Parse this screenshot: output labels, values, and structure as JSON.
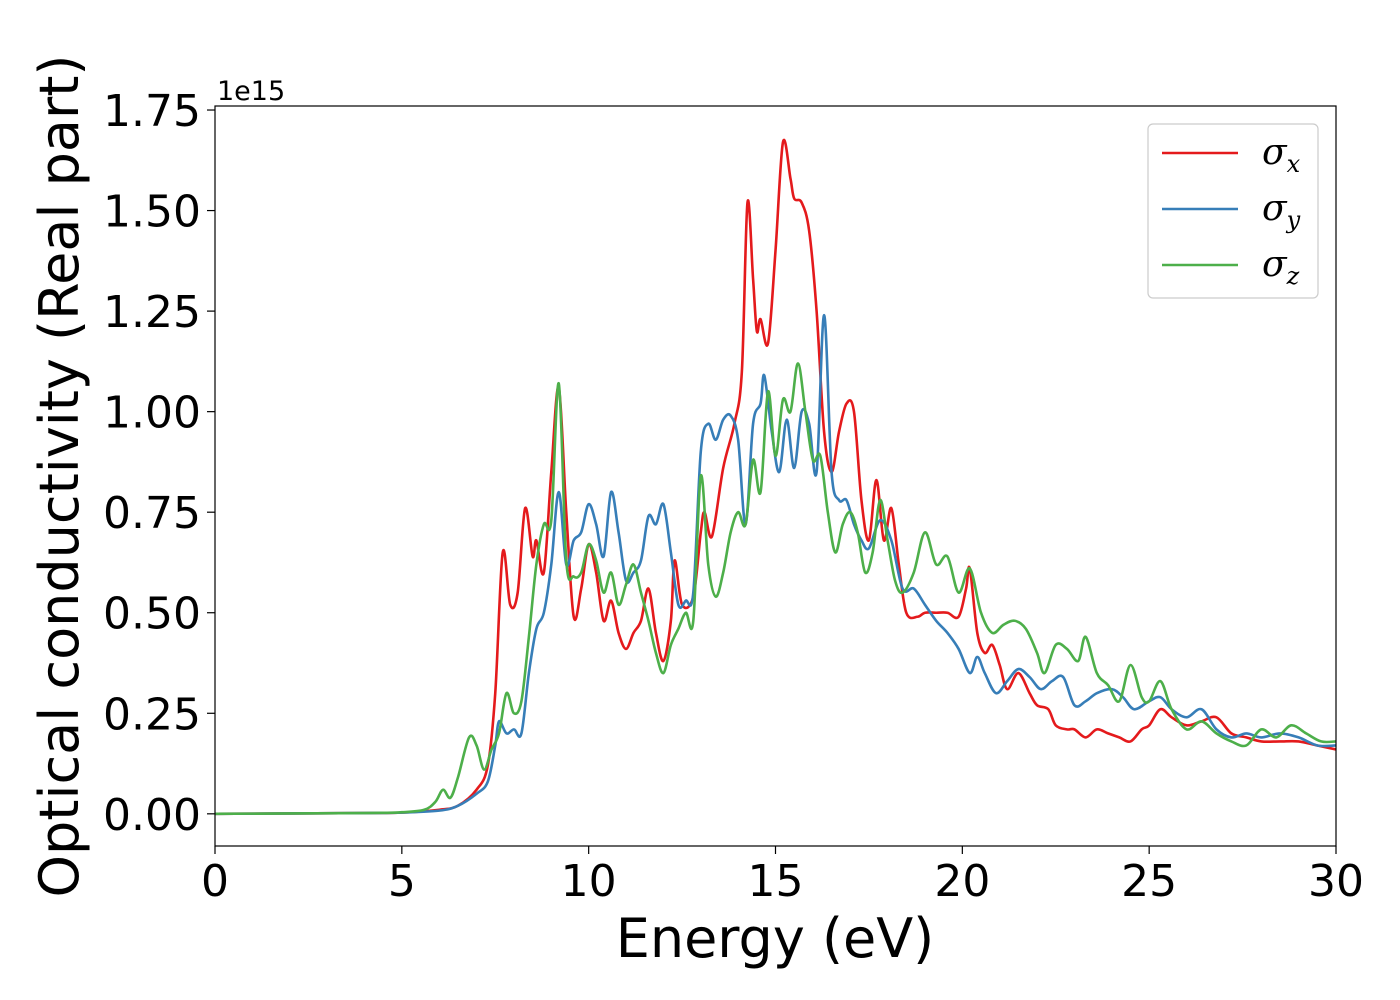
{
  "chart_data": {
    "type": "line",
    "xlabel": "Energy (eV)",
    "ylabel": "Optical conductivity (Real part)",
    "y_offset_label": "1e15",
    "xlim": [
      0,
      30
    ],
    "ylim": [
      -0.08,
      1.76
    ],
    "grid": false,
    "legend_position": "top-right",
    "x_ticks": [
      0,
      5,
      10,
      15,
      20,
      25,
      30
    ],
    "x_tick_labels": [
      "0",
      "5",
      "10",
      "15",
      "20",
      "25",
      "30"
    ],
    "y_ticks": [
      0,
      0.25,
      0.5,
      0.75,
      1.0,
      1.25,
      1.5,
      1.75
    ],
    "y_tick_labels": [
      "0.00",
      "0.25",
      "0.50",
      "0.75",
      "1.00",
      "1.25",
      "1.50",
      "1.75"
    ],
    "series": [
      {
        "name": "σx",
        "symbol": "σ",
        "subscript": "x",
        "color": "#e41a1c",
        "points": [
          [
            0,
            0
          ],
          [
            4,
            0.002
          ],
          [
            5,
            0.003
          ],
          [
            6,
            0.01
          ],
          [
            6.5,
            0.02
          ],
          [
            7,
            0.06
          ],
          [
            7.3,
            0.12
          ],
          [
            7.5,
            0.3
          ],
          [
            7.7,
            0.65
          ],
          [
            7.9,
            0.52
          ],
          [
            8.1,
            0.55
          ],
          [
            8.3,
            0.76
          ],
          [
            8.5,
            0.64
          ],
          [
            8.6,
            0.68
          ],
          [
            8.8,
            0.6
          ],
          [
            9.0,
            0.85
          ],
          [
            9.2,
            1.06
          ],
          [
            9.4,
            0.75
          ],
          [
            9.6,
            0.49
          ],
          [
            9.8,
            0.56
          ],
          [
            10.0,
            0.67
          ],
          [
            10.2,
            0.6
          ],
          [
            10.4,
            0.48
          ],
          [
            10.6,
            0.53
          ],
          [
            10.8,
            0.45
          ],
          [
            11.0,
            0.41
          ],
          [
            11.2,
            0.45
          ],
          [
            11.4,
            0.48
          ],
          [
            11.6,
            0.56
          ],
          [
            11.8,
            0.45
          ],
          [
            12.0,
            0.38
          ],
          [
            12.2,
            0.48
          ],
          [
            12.3,
            0.63
          ],
          [
            12.5,
            0.52
          ],
          [
            12.8,
            0.54
          ],
          [
            13.0,
            0.7
          ],
          [
            13.1,
            0.75
          ],
          [
            13.3,
            0.69
          ],
          [
            13.6,
            0.86
          ],
          [
            13.9,
            0.97
          ],
          [
            14.1,
            1.1
          ],
          [
            14.25,
            1.52
          ],
          [
            14.4,
            1.33
          ],
          [
            14.5,
            1.2
          ],
          [
            14.6,
            1.23
          ],
          [
            14.8,
            1.17
          ],
          [
            15.0,
            1.4
          ],
          [
            15.2,
            1.67
          ],
          [
            15.4,
            1.58
          ],
          [
            15.5,
            1.53
          ],
          [
            15.7,
            1.52
          ],
          [
            15.9,
            1.45
          ],
          [
            16.1,
            1.25
          ],
          [
            16.3,
            0.95
          ],
          [
            16.5,
            0.85
          ],
          [
            16.7,
            0.95
          ],
          [
            16.9,
            1.02
          ],
          [
            17.1,
            1.0
          ],
          [
            17.3,
            0.78
          ],
          [
            17.5,
            0.68
          ],
          [
            17.7,
            0.83
          ],
          [
            17.9,
            0.68
          ],
          [
            18.1,
            0.76
          ],
          [
            18.3,
            0.62
          ],
          [
            18.5,
            0.5
          ],
          [
            18.8,
            0.49
          ],
          [
            19.0,
            0.5
          ],
          [
            19.3,
            0.5
          ],
          [
            19.6,
            0.5
          ],
          [
            19.9,
            0.49
          ],
          [
            20.1,
            0.56
          ],
          [
            20.2,
            0.61
          ],
          [
            20.4,
            0.45
          ],
          [
            20.6,
            0.4
          ],
          [
            20.8,
            0.42
          ],
          [
            21.0,
            0.37
          ],
          [
            21.2,
            0.31
          ],
          [
            21.5,
            0.35
          ],
          [
            21.8,
            0.3
          ],
          [
            22.0,
            0.27
          ],
          [
            22.3,
            0.26
          ],
          [
            22.5,
            0.22
          ],
          [
            22.8,
            0.21
          ],
          [
            23.0,
            0.21
          ],
          [
            23.3,
            0.19
          ],
          [
            23.6,
            0.21
          ],
          [
            23.9,
            0.2
          ],
          [
            24.2,
            0.19
          ],
          [
            24.5,
            0.18
          ],
          [
            24.8,
            0.21
          ],
          [
            25.0,
            0.22
          ],
          [
            25.3,
            0.26
          ],
          [
            25.6,
            0.24
          ],
          [
            26.0,
            0.22
          ],
          [
            26.4,
            0.23
          ],
          [
            26.8,
            0.24
          ],
          [
            27.2,
            0.2
          ],
          [
            27.6,
            0.19
          ],
          [
            28.0,
            0.18
          ],
          [
            28.5,
            0.18
          ],
          [
            29.0,
            0.18
          ],
          [
            29.5,
            0.17
          ],
          [
            30.0,
            0.16
          ]
        ]
      },
      {
        "name": "σy",
        "symbol": "σ",
        "subscript": "y",
        "color": "#377eb8",
        "points": [
          [
            0,
            0
          ],
          [
            4,
            0.002
          ],
          [
            5,
            0.003
          ],
          [
            6,
            0.008
          ],
          [
            6.5,
            0.02
          ],
          [
            7,
            0.05
          ],
          [
            7.3,
            0.08
          ],
          [
            7.5,
            0.17
          ],
          [
            7.6,
            0.23
          ],
          [
            7.8,
            0.2
          ],
          [
            8.0,
            0.21
          ],
          [
            8.2,
            0.2
          ],
          [
            8.4,
            0.35
          ],
          [
            8.6,
            0.46
          ],
          [
            8.8,
            0.5
          ],
          [
            9.0,
            0.62
          ],
          [
            9.2,
            0.8
          ],
          [
            9.4,
            0.62
          ],
          [
            9.6,
            0.68
          ],
          [
            9.8,
            0.7
          ],
          [
            10.0,
            0.77
          ],
          [
            10.2,
            0.72
          ],
          [
            10.4,
            0.64
          ],
          [
            10.6,
            0.8
          ],
          [
            10.8,
            0.7
          ],
          [
            11.0,
            0.58
          ],
          [
            11.2,
            0.6
          ],
          [
            11.4,
            0.63
          ],
          [
            11.6,
            0.74
          ],
          [
            11.8,
            0.72
          ],
          [
            12.0,
            0.77
          ],
          [
            12.2,
            0.65
          ],
          [
            12.4,
            0.52
          ],
          [
            12.6,
            0.53
          ],
          [
            12.8,
            0.55
          ],
          [
            13.0,
            0.9
          ],
          [
            13.2,
            0.97
          ],
          [
            13.4,
            0.93
          ],
          [
            13.6,
            0.98
          ],
          [
            13.8,
            0.99
          ],
          [
            14.0,
            0.93
          ],
          [
            14.2,
            0.72
          ],
          [
            14.4,
            0.97
          ],
          [
            14.6,
            1.02
          ],
          [
            14.7,
            1.09
          ],
          [
            14.9,
            0.95
          ],
          [
            15.1,
            0.85
          ],
          [
            15.3,
            0.98
          ],
          [
            15.5,
            0.86
          ],
          [
            15.7,
            1.0
          ],
          [
            15.9,
            0.97
          ],
          [
            16.1,
            0.85
          ],
          [
            16.3,
            1.24
          ],
          [
            16.5,
            0.85
          ],
          [
            16.7,
            0.78
          ],
          [
            16.9,
            0.78
          ],
          [
            17.1,
            0.72
          ],
          [
            17.3,
            0.68
          ],
          [
            17.5,
            0.66
          ],
          [
            17.8,
            0.73
          ],
          [
            18.1,
            0.68
          ],
          [
            18.4,
            0.56
          ],
          [
            18.7,
            0.56
          ],
          [
            19.0,
            0.52
          ],
          [
            19.3,
            0.48
          ],
          [
            19.6,
            0.45
          ],
          [
            19.9,
            0.41
          ],
          [
            20.2,
            0.35
          ],
          [
            20.4,
            0.39
          ],
          [
            20.6,
            0.35
          ],
          [
            20.9,
            0.3
          ],
          [
            21.2,
            0.33
          ],
          [
            21.5,
            0.36
          ],
          [
            21.8,
            0.34
          ],
          [
            22.1,
            0.31
          ],
          [
            22.4,
            0.33
          ],
          [
            22.7,
            0.34
          ],
          [
            23.0,
            0.27
          ],
          [
            23.3,
            0.28
          ],
          [
            23.6,
            0.3
          ],
          [
            24.0,
            0.31
          ],
          [
            24.3,
            0.29
          ],
          [
            24.6,
            0.26
          ],
          [
            25.0,
            0.28
          ],
          [
            25.3,
            0.29
          ],
          [
            25.6,
            0.26
          ],
          [
            26.0,
            0.24
          ],
          [
            26.4,
            0.26
          ],
          [
            26.8,
            0.21
          ],
          [
            27.2,
            0.19
          ],
          [
            27.6,
            0.2
          ],
          [
            28.0,
            0.19
          ],
          [
            28.5,
            0.2
          ],
          [
            29.0,
            0.19
          ],
          [
            29.5,
            0.17
          ],
          [
            30.0,
            0.17
          ]
        ]
      },
      {
        "name": "σz",
        "symbol": "σ",
        "subscript": "z",
        "color": "#4daf4a",
        "points": [
          [
            0,
            0
          ],
          [
            4,
            0.002
          ],
          [
            5,
            0.004
          ],
          [
            5.6,
            0.01
          ],
          [
            5.9,
            0.03
          ],
          [
            6.1,
            0.06
          ],
          [
            6.3,
            0.04
          ],
          [
            6.5,
            0.09
          ],
          [
            6.8,
            0.19
          ],
          [
            7.0,
            0.17
          ],
          [
            7.2,
            0.11
          ],
          [
            7.4,
            0.16
          ],
          [
            7.6,
            0.2
          ],
          [
            7.8,
            0.3
          ],
          [
            8.0,
            0.25
          ],
          [
            8.2,
            0.28
          ],
          [
            8.4,
            0.44
          ],
          [
            8.6,
            0.62
          ],
          [
            8.8,
            0.72
          ],
          [
            9.0,
            0.73
          ],
          [
            9.2,
            1.07
          ],
          [
            9.4,
            0.63
          ],
          [
            9.6,
            0.59
          ],
          [
            9.8,
            0.6
          ],
          [
            10.0,
            0.67
          ],
          [
            10.2,
            0.63
          ],
          [
            10.4,
            0.55
          ],
          [
            10.6,
            0.6
          ],
          [
            10.8,
            0.52
          ],
          [
            11.0,
            0.57
          ],
          [
            11.2,
            0.62
          ],
          [
            11.4,
            0.55
          ],
          [
            11.6,
            0.48
          ],
          [
            11.8,
            0.4
          ],
          [
            12.0,
            0.35
          ],
          [
            12.2,
            0.42
          ],
          [
            12.4,
            0.46
          ],
          [
            12.6,
            0.5
          ],
          [
            12.8,
            0.48
          ],
          [
            13.0,
            0.84
          ],
          [
            13.2,
            0.62
          ],
          [
            13.4,
            0.54
          ],
          [
            13.6,
            0.6
          ],
          [
            13.8,
            0.7
          ],
          [
            14.0,
            0.75
          ],
          [
            14.2,
            0.72
          ],
          [
            14.4,
            0.88
          ],
          [
            14.6,
            0.8
          ],
          [
            14.8,
            1.05
          ],
          [
            15.0,
            0.89
          ],
          [
            15.2,
            1.03
          ],
          [
            15.4,
            1.0
          ],
          [
            15.6,
            1.12
          ],
          [
            15.8,
            1.0
          ],
          [
            16.0,
            0.88
          ],
          [
            16.2,
            0.89
          ],
          [
            16.4,
            0.75
          ],
          [
            16.6,
            0.65
          ],
          [
            16.8,
            0.72
          ],
          [
            17.0,
            0.75
          ],
          [
            17.2,
            0.7
          ],
          [
            17.4,
            0.6
          ],
          [
            17.6,
            0.65
          ],
          [
            17.8,
            0.78
          ],
          [
            18.0,
            0.68
          ],
          [
            18.2,
            0.58
          ],
          [
            18.4,
            0.55
          ],
          [
            18.7,
            0.6
          ],
          [
            19.0,
            0.7
          ],
          [
            19.3,
            0.62
          ],
          [
            19.6,
            0.64
          ],
          [
            19.9,
            0.55
          ],
          [
            20.2,
            0.61
          ],
          [
            20.5,
            0.5
          ],
          [
            20.8,
            0.45
          ],
          [
            21.1,
            0.47
          ],
          [
            21.4,
            0.48
          ],
          [
            21.7,
            0.46
          ],
          [
            22.0,
            0.4
          ],
          [
            22.2,
            0.35
          ],
          [
            22.5,
            0.42
          ],
          [
            22.8,
            0.41
          ],
          [
            23.1,
            0.38
          ],
          [
            23.3,
            0.44
          ],
          [
            23.6,
            0.35
          ],
          [
            23.9,
            0.32
          ],
          [
            24.2,
            0.28
          ],
          [
            24.5,
            0.37
          ],
          [
            24.8,
            0.29
          ],
          [
            25.0,
            0.28
          ],
          [
            25.3,
            0.33
          ],
          [
            25.6,
            0.26
          ],
          [
            26.0,
            0.21
          ],
          [
            26.4,
            0.23
          ],
          [
            26.8,
            0.2
          ],
          [
            27.2,
            0.18
          ],
          [
            27.6,
            0.17
          ],
          [
            28.0,
            0.21
          ],
          [
            28.4,
            0.19
          ],
          [
            28.8,
            0.22
          ],
          [
            29.2,
            0.2
          ],
          [
            29.6,
            0.18
          ],
          [
            30.0,
            0.18
          ]
        ]
      }
    ]
  }
}
